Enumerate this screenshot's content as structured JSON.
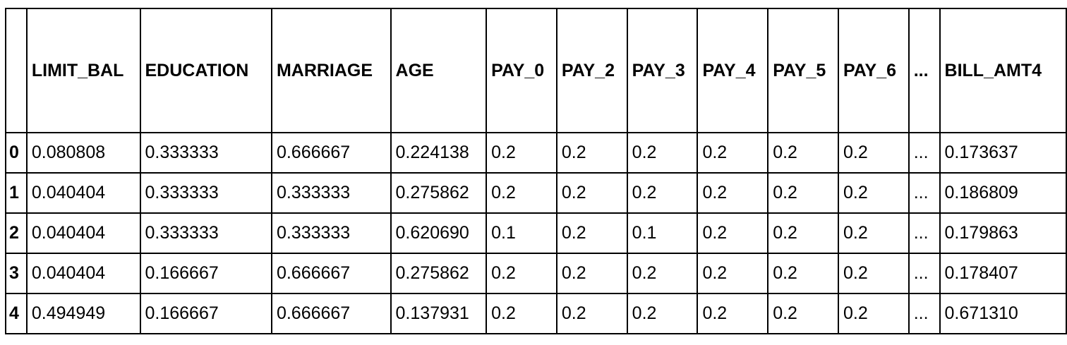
{
  "table": {
    "columns": [
      "LIMIT_BAL",
      "EDUCATION",
      "MARRIAGE",
      "AGE",
      "PAY_0",
      "PAY_2",
      "PAY_3",
      "PAY_4",
      "PAY_5",
      "PAY_6",
      "...",
      "BILL_AMT4"
    ],
    "rows": [
      {
        "index": "0",
        "cells": [
          "0.080808",
          "0.333333",
          "0.666667",
          "0.224138",
          "0.2",
          "0.2",
          "0.2",
          "0.2",
          "0.2",
          "0.2",
          "...",
          "0.173637"
        ]
      },
      {
        "index": "1",
        "cells": [
          "0.040404",
          "0.333333",
          "0.333333",
          "0.275862",
          "0.2",
          "0.2",
          "0.2",
          "0.2",
          "0.2",
          "0.2",
          "...",
          "0.186809"
        ]
      },
      {
        "index": "2",
        "cells": [
          "0.040404",
          "0.333333",
          "0.333333",
          "0.620690",
          "0.1",
          "0.2",
          "0.1",
          "0.2",
          "0.2",
          "0.2",
          "...",
          "0.179863"
        ]
      },
      {
        "index": "3",
        "cells": [
          "0.040404",
          "0.166667",
          "0.666667",
          "0.275862",
          "0.2",
          "0.2",
          "0.2",
          "0.2",
          "0.2",
          "0.2",
          "...",
          "0.178407"
        ]
      },
      {
        "index": "4",
        "cells": [
          "0.494949",
          "0.166667",
          "0.666667",
          "0.137931",
          "0.2",
          "0.2",
          "0.2",
          "0.2",
          "0.2",
          "0.2",
          "...",
          "0.671310"
        ]
      }
    ]
  }
}
